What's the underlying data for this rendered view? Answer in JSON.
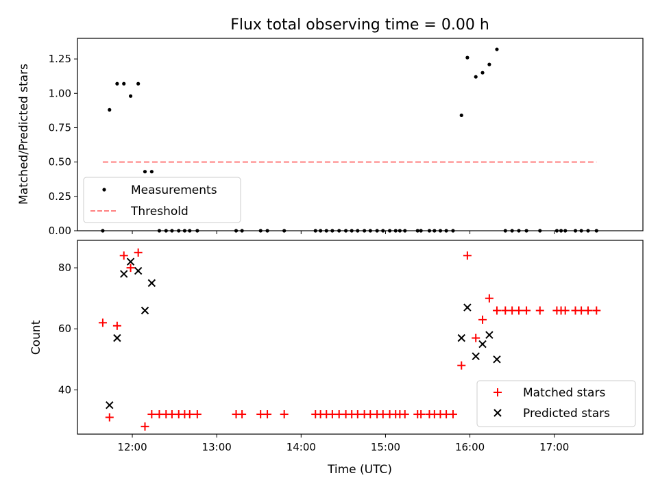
{
  "chart_data": [
    {
      "type": "scatter",
      "title": "Flux total observing time = 0.00 h",
      "ylabel": "Matched/Predicted stars",
      "xlabel": "",
      "x_range_hours": [
        11.35,
        18.05
      ],
      "ylim": [
        0,
        1.4
      ],
      "yticks": [
        "0.00",
        "0.25",
        "0.50",
        "0.75",
        "1.00",
        "1.25"
      ],
      "yticks_values": [
        0,
        0.25,
        0.5,
        0.75,
        1.0,
        1.25
      ],
      "legend": {
        "position": "lower left",
        "entries": [
          "Measurements",
          "Threshold"
        ]
      },
      "threshold": {
        "name": "Threshold",
        "y": 0.5,
        "x_start": 11.65,
        "x_end": 17.5,
        "color": "#ff7f7f",
        "style": "dashed"
      },
      "series": [
        {
          "name": "Measurements",
          "color": "#000000",
          "marker": "dot",
          "points": [
            [
              11.65,
              0
            ],
            [
              11.73,
              0.88
            ],
            [
              11.82,
              1.07
            ],
            [
              11.9,
              1.07
            ],
            [
              11.98,
              0.98
            ],
            [
              12.07,
              1.07
            ],
            [
              12.15,
              0.43
            ],
            [
              12.23,
              0.43
            ],
            [
              12.32,
              0
            ],
            [
              12.4,
              0
            ],
            [
              12.47,
              0
            ],
            [
              12.55,
              0
            ],
            [
              12.62,
              0
            ],
            [
              12.68,
              0
            ],
            [
              12.77,
              0
            ],
            [
              13.23,
              0
            ],
            [
              13.3,
              0
            ],
            [
              13.52,
              0
            ],
            [
              13.6,
              0
            ],
            [
              13.8,
              0
            ],
            [
              14.17,
              0
            ],
            [
              14.23,
              0
            ],
            [
              14.3,
              0
            ],
            [
              14.37,
              0
            ],
            [
              14.45,
              0
            ],
            [
              14.53,
              0
            ],
            [
              14.6,
              0
            ],
            [
              14.67,
              0
            ],
            [
              14.75,
              0
            ],
            [
              14.82,
              0
            ],
            [
              14.9,
              0
            ],
            [
              14.97,
              0
            ],
            [
              15.05,
              0
            ],
            [
              15.12,
              0
            ],
            [
              15.17,
              0
            ],
            [
              15.23,
              0
            ],
            [
              15.38,
              0
            ],
            [
              15.42,
              0
            ],
            [
              15.52,
              0
            ],
            [
              15.58,
              0
            ],
            [
              15.65,
              0
            ],
            [
              15.72,
              0
            ],
            [
              15.8,
              0
            ],
            [
              15.9,
              0.84
            ],
            [
              15.97,
              1.26
            ],
            [
              16.07,
              1.12
            ],
            [
              16.15,
              1.15
            ],
            [
              16.23,
              1.21
            ],
            [
              16.32,
              1.32
            ],
            [
              16.42,
              0
            ],
            [
              16.5,
              0
            ],
            [
              16.58,
              0
            ],
            [
              16.67,
              0
            ],
            [
              16.83,
              0
            ],
            [
              17.03,
              0
            ],
            [
              17.08,
              0
            ],
            [
              17.13,
              0
            ],
            [
              17.25,
              0
            ],
            [
              17.32,
              0
            ],
            [
              17.4,
              0
            ],
            [
              17.5,
              0
            ]
          ]
        }
      ]
    },
    {
      "type": "scatter",
      "title": "",
      "ylabel": "Count",
      "xlabel": "Time (UTC)",
      "x_range_hours": [
        11.35,
        18.05
      ],
      "xticks": [
        "12:00",
        "13:00",
        "14:00",
        "15:00",
        "16:00",
        "17:00"
      ],
      "xticks_values": [
        12,
        13,
        14,
        15,
        16,
        17
      ],
      "ylim": [
        25.5,
        89
      ],
      "yticks": [
        "40",
        "60",
        "80"
      ],
      "yticks_values": [
        40,
        60,
        80
      ],
      "legend": {
        "position": "lower right",
        "entries": [
          "Matched stars",
          "Predicted stars"
        ]
      },
      "series": [
        {
          "name": "Matched stars",
          "color": "#ff0000",
          "marker": "plus",
          "points": [
            [
              11.65,
              62
            ],
            [
              11.73,
              31
            ],
            [
              11.82,
              61
            ],
            [
              11.9,
              84
            ],
            [
              11.98,
              80
            ],
            [
              12.07,
              85
            ],
            [
              12.15,
              28
            ],
            [
              12.23,
              32
            ],
            [
              12.32,
              32
            ],
            [
              12.4,
              32
            ],
            [
              12.47,
              32
            ],
            [
              12.55,
              32
            ],
            [
              12.62,
              32
            ],
            [
              12.68,
              32
            ],
            [
              12.77,
              32
            ],
            [
              13.23,
              32
            ],
            [
              13.3,
              32
            ],
            [
              13.52,
              32
            ],
            [
              13.6,
              32
            ],
            [
              13.8,
              32
            ],
            [
              14.17,
              32
            ],
            [
              14.23,
              32
            ],
            [
              14.3,
              32
            ],
            [
              14.37,
              32
            ],
            [
              14.45,
              32
            ],
            [
              14.53,
              32
            ],
            [
              14.6,
              32
            ],
            [
              14.67,
              32
            ],
            [
              14.75,
              32
            ],
            [
              14.82,
              32
            ],
            [
              14.9,
              32
            ],
            [
              14.97,
              32
            ],
            [
              15.05,
              32
            ],
            [
              15.12,
              32
            ],
            [
              15.17,
              32
            ],
            [
              15.23,
              32
            ],
            [
              15.38,
              32
            ],
            [
              15.42,
              32
            ],
            [
              15.52,
              32
            ],
            [
              15.58,
              32
            ],
            [
              15.65,
              32
            ],
            [
              15.72,
              32
            ],
            [
              15.8,
              32
            ],
            [
              15.9,
              48
            ],
            [
              15.97,
              84
            ],
            [
              16.07,
              57
            ],
            [
              16.15,
              63
            ],
            [
              16.23,
              70
            ],
            [
              16.32,
              66
            ],
            [
              16.42,
              66
            ],
            [
              16.5,
              66
            ],
            [
              16.58,
              66
            ],
            [
              16.67,
              66
            ],
            [
              16.83,
              66
            ],
            [
              17.03,
              66
            ],
            [
              17.08,
              66
            ],
            [
              17.13,
              66
            ],
            [
              17.25,
              66
            ],
            [
              17.32,
              66
            ],
            [
              17.4,
              66
            ],
            [
              17.5,
              66
            ]
          ]
        },
        {
          "name": "Predicted stars",
          "color": "#000000",
          "marker": "x",
          "points": [
            [
              11.73,
              35
            ],
            [
              11.82,
              57
            ],
            [
              11.9,
              78
            ],
            [
              11.98,
              82
            ],
            [
              12.07,
              79
            ],
            [
              12.15,
              66
            ],
            [
              12.23,
              75
            ],
            [
              15.9,
              57
            ],
            [
              15.97,
              67
            ],
            [
              16.07,
              51
            ],
            [
              16.15,
              55
            ],
            [
              16.23,
              58
            ],
            [
              16.32,
              50
            ]
          ]
        }
      ]
    }
  ]
}
